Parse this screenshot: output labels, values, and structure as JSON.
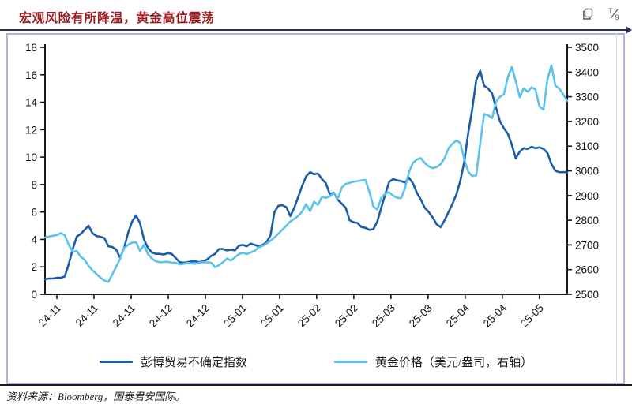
{
  "header": {
    "title": "宏观风险有所降温，黄金高位震荡",
    "toolbar": {
      "copy_icon": "copy",
      "fraction_icon": "T/9"
    }
  },
  "footer": {
    "source": "资料来源：Bloomberg，国泰君安国际。"
  },
  "colors": {
    "title_red": "#9C1B1E",
    "dark_line": "#1B5CA8",
    "light_line": "#5BC2EA",
    "axis": "#1a1a1a",
    "selection_border": "#ABB2E4",
    "top_rule": "#2E2E5E"
  },
  "chart_data": {
    "type": "line",
    "title": "宏观风险有所降温，黄金高位震荡",
    "x_tick_labels": [
      "24-11",
      "24-11",
      "24-11",
      "24-12",
      "24-12",
      "25-01",
      "25-01",
      "25-02",
      "25-02",
      "25-03",
      "25-03",
      "25-04",
      "25-04",
      "25-05"
    ],
    "left_axis": {
      "min": 0,
      "max": 18,
      "tick_labels": [
        "0",
        "2",
        "4",
        "6",
        "8",
        "10",
        "12",
        "14",
        "16",
        "18"
      ]
    },
    "right_axis": {
      "min": 2500,
      "max": 3500,
      "tick_labels": [
        "2500",
        "2600",
        "2700",
        "2800",
        "2900",
        "3000",
        "3100",
        "3200",
        "3300",
        "3400",
        "3500"
      ]
    },
    "grid": false,
    "legend_position": "bottom",
    "series": [
      {
        "name": "彭博贸易不确定指数",
        "axis": "left",
        "color": "#1B5CA8",
        "values": [
          1.1,
          1.15,
          1.15,
          1.2,
          1.2,
          1.3,
          2.2,
          3.3,
          4.2,
          4.4,
          4.7,
          5.0,
          4.45,
          4.25,
          4.2,
          4.1,
          3.5,
          3.45,
          3.25,
          2.65,
          3.4,
          4.5,
          5.3,
          5.75,
          5.2,
          4.0,
          3.4,
          3.05,
          2.95,
          2.95,
          2.9,
          3.0,
          2.95,
          2.65,
          2.35,
          2.3,
          2.35,
          2.4,
          2.4,
          2.35,
          2.4,
          2.55,
          2.8,
          2.95,
          3.3,
          3.3,
          3.2,
          3.25,
          3.2,
          3.55,
          3.6,
          3.5,
          3.7,
          3.6,
          3.5,
          3.6,
          3.8,
          4.3,
          6.0,
          6.45,
          6.5,
          6.35,
          5.7,
          6.3,
          7.1,
          7.9,
          8.6,
          8.9,
          8.75,
          8.8,
          8.4,
          8.1,
          7.3,
          7.4,
          6.9,
          6.6,
          6.3,
          5.4,
          5.25,
          5.2,
          4.9,
          4.85,
          4.7,
          4.75,
          5.3,
          6.3,
          7.3,
          8.2,
          8.4,
          8.3,
          8.25,
          8.15,
          8.5,
          8.1,
          7.4,
          6.9,
          6.3,
          6.0,
          5.6,
          5.1,
          4.9,
          5.4,
          6.0,
          6.6,
          7.3,
          8.3,
          9.7,
          11.8,
          13.5,
          15.6,
          16.3,
          15.2,
          15.0,
          14.65,
          13.6,
          12.6,
          12.1,
          11.7,
          10.9,
          9.9,
          10.4,
          10.65,
          10.6,
          10.75,
          10.65,
          10.7,
          10.6,
          10.3,
          9.5,
          9.0,
          8.9,
          8.9,
          8.9
        ]
      },
      {
        "name": "黄金价格（美元/盎司，右轴）",
        "axis": "right",
        "color": "#5BC2EA",
        "values": [
          2730,
          2734,
          2737,
          2740,
          2748,
          2740,
          2700,
          2672,
          2675,
          2653,
          2640,
          2615,
          2597,
          2583,
          2567,
          2556,
          2550,
          2580,
          2612,
          2644,
          2688,
          2701,
          2709,
          2711,
          2676,
          2700,
          2663,
          2645,
          2634,
          2630,
          2631,
          2632,
          2628,
          2628,
          2621,
          2623,
          2628,
          2625,
          2623,
          2628,
          2630,
          2629,
          2628,
          2610,
          2618,
          2630,
          2645,
          2637,
          2650,
          2663,
          2669,
          2663,
          2670,
          2676,
          2690,
          2696,
          2705,
          2717,
          2730,
          2746,
          2762,
          2778,
          2795,
          2805,
          2818,
          2835,
          2865,
          2836,
          2875,
          2862,
          2895,
          2890,
          2897,
          2910,
          2888,
          2932,
          2947,
          2951,
          2956,
          2958,
          2961,
          2963,
          2915,
          2856,
          2843,
          2890,
          2908,
          2913,
          2899,
          2891,
          2889,
          2930,
          2995,
          3032,
          3046,
          3051,
          3032,
          3018,
          3011,
          3015,
          3027,
          3051,
          3091,
          3110,
          3123,
          3112,
          3045,
          2996,
          2979,
          2982,
          3110,
          3230,
          3225,
          3213,
          3280,
          3300,
          3310,
          3380,
          3420,
          3363,
          3298,
          3334,
          3320,
          3338,
          3329,
          3260,
          3248,
          3370,
          3427,
          3345,
          3333,
          3310,
          3283
        ]
      }
    ]
  }
}
